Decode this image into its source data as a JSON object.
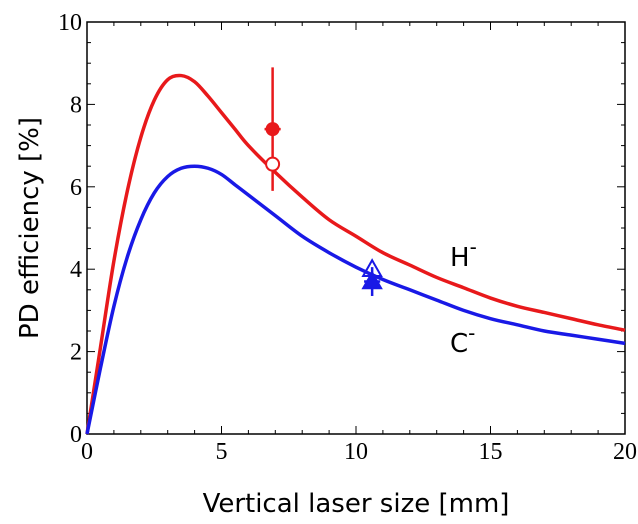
{
  "chart_data": {
    "type": "line",
    "title": "",
    "xlabel": "Vertical laser size [mm]",
    "ylabel": "PD efficiency [%]",
    "xlim": [
      0,
      20
    ],
    "ylim": [
      0,
      10
    ],
    "x_ticks": [
      "0",
      "5",
      "10",
      "15",
      "20"
    ],
    "y_ticks": [
      "0",
      "2",
      "4",
      "6",
      "8",
      "10"
    ],
    "grid": false,
    "series": [
      {
        "name": "H",
        "label_base": "H",
        "label_sup": "-",
        "color": "#e8191b",
        "x": [
          0,
          0.5,
          1,
          1.5,
          2,
          2.5,
          3,
          3.5,
          4,
          4.5,
          5,
          5.5,
          6,
          7,
          8,
          9,
          10,
          11,
          12,
          13,
          14,
          15,
          16,
          17,
          18,
          19,
          20
        ],
        "y": [
          0,
          2.1,
          4.2,
          5.9,
          7.2,
          8.1,
          8.6,
          8.7,
          8.55,
          8.2,
          7.8,
          7.4,
          7.0,
          6.35,
          5.75,
          5.2,
          4.8,
          4.4,
          4.1,
          3.8,
          3.55,
          3.3,
          3.1,
          2.95,
          2.8,
          2.65,
          2.52
        ]
      },
      {
        "name": "C",
        "label_base": "C",
        "label_sup": "-",
        "color": "#1919e6",
        "x": [
          0,
          0.5,
          1,
          1.5,
          2,
          2.5,
          3,
          3.5,
          4,
          4.5,
          5,
          5.5,
          6,
          7,
          8,
          9,
          10,
          11,
          12,
          13,
          14,
          15,
          16,
          17,
          18,
          19,
          20
        ],
        "y": [
          0,
          1.6,
          3.1,
          4.3,
          5.2,
          5.85,
          6.25,
          6.45,
          6.5,
          6.45,
          6.3,
          6.05,
          5.8,
          5.3,
          4.8,
          4.4,
          4.05,
          3.75,
          3.5,
          3.25,
          3.0,
          2.8,
          2.65,
          2.5,
          2.4,
          2.3,
          2.2
        ]
      }
    ],
    "points": [
      {
        "series": "H",
        "marker": "filled-circle",
        "x": 6.9,
        "y": 7.4,
        "yerr": [
          5.9,
          8.9
        ],
        "xerr": 0.3
      },
      {
        "series": "H",
        "marker": "open-circle",
        "x": 6.9,
        "y": 6.55
      },
      {
        "series": "C",
        "marker": "filled-triangle",
        "x": 10.6,
        "y": 3.7,
        "yerr": [
          3.35,
          4.05
        ],
        "xerr": 0.3
      },
      {
        "series": "C",
        "marker": "open-triangle",
        "x": 10.6,
        "y": 4.0
      }
    ]
  }
}
